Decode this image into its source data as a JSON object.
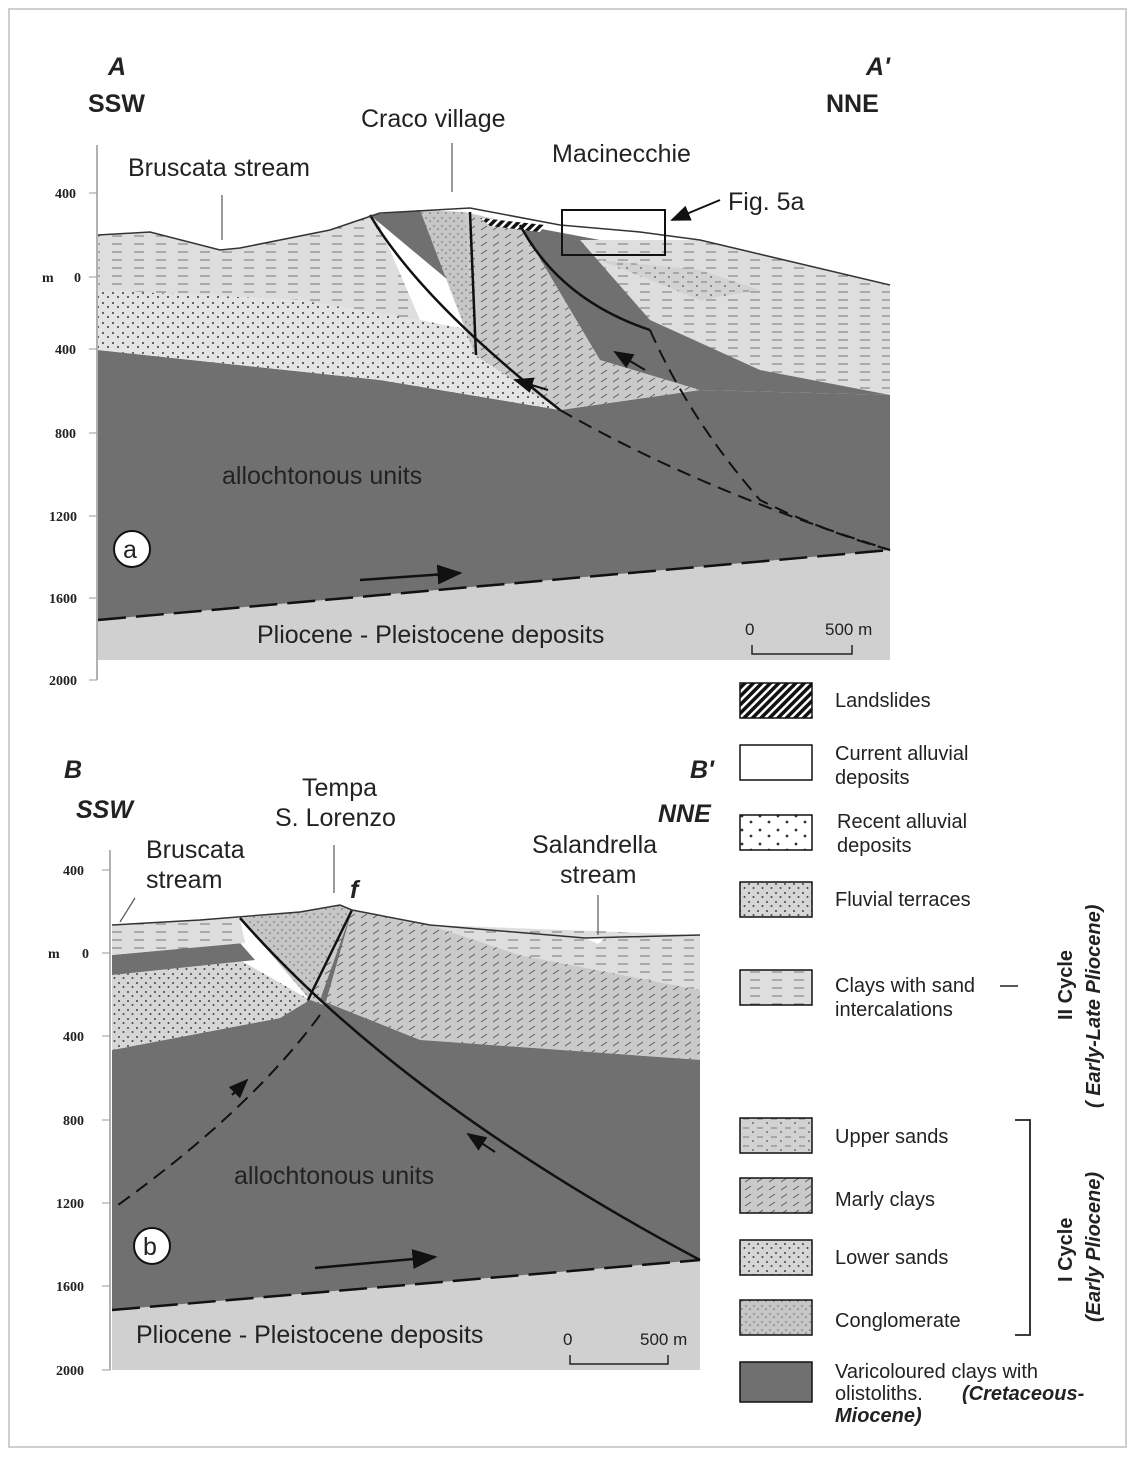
{
  "section_a": {
    "left_letter": "A",
    "left_dir": "SSW",
    "right_letter": "A'",
    "right_dir": "NNE",
    "label_craco": "Craco village",
    "label_bruscata": "Bruscata stream",
    "label_macinecchie": "Macinecchie",
    "label_fig": "Fig. 5a",
    "label_units": "allochtonous units",
    "label_plio": "Pliocene - Pleistocene deposits",
    "badge": "a",
    "axis_unit": "m",
    "ticks": [
      "400",
      "0",
      "400",
      "800",
      "1200",
      "1600",
      "2000"
    ],
    "scale_zero": "0",
    "scale_len": "500 m"
  },
  "section_b": {
    "left_letter": "B",
    "left_dir": "SSW",
    "right_letter": "B'",
    "right_dir": "NNE",
    "label_tempa_1": "Tempa",
    "label_tempa_2": "S. Lorenzo",
    "label_bruscata_1": "Bruscata",
    "label_bruscata_2": "stream",
    "label_salandrella_1": "Salandrella",
    "label_salandrella_2": "stream",
    "fault_mark": "f",
    "label_units": "allochtonous units",
    "label_plio": "Pliocene - Pleistocene deposits",
    "badge": "b",
    "axis_unit": "m",
    "ticks": [
      "400",
      "0",
      "400",
      "800",
      "1200",
      "1600",
      "2000"
    ],
    "scale_zero": "0",
    "scale_len": "500 m"
  },
  "legend": {
    "landslides": "Landslides",
    "current_1": "Current alluvial",
    "current_2": "deposits",
    "recent_1": "Recent alluvial",
    "recent_2": "deposits",
    "fluvial": "Fluvial terraces",
    "clays_1": "Clays with sand",
    "clays_2": "intercalations",
    "upper": "Upper sands",
    "marly": "Marly clays",
    "lower": "Lower sands",
    "conglomerate": "Conglomerate",
    "vari_1": "Varicoloured clays with",
    "vari_2": "olistoliths.",
    "vari_3": "(Cretaceous-",
    "vari_4": "Miocene)",
    "cycle2_1": "II Cycle",
    "cycle2_2": "( Early-Late Pliocene)",
    "cycle1_1": "I Cycle",
    "cycle1_2": "(Early Pliocene)"
  },
  "colors": {
    "allochthonous": "#707070",
    "plio": "#d0d0d0",
    "clays": "#dcdcdc",
    "sands": "#c4c4c4"
  }
}
